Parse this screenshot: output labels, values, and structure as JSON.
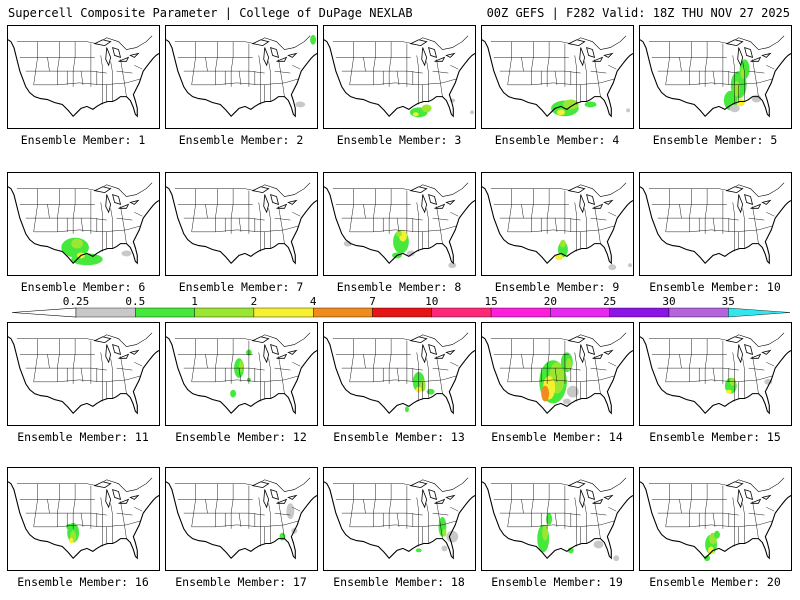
{
  "header": {
    "title": "Supercell Composite Parameter | College of DuPage NEXLAB",
    "valid": "00Z GEFS | F282 Valid: 18Z THU NOV 27 2025"
  },
  "colors": {
    "0.25": "#c8c8c8",
    "0.5": "#46e83c",
    "1": "#9be632",
    "2": "#f5f032",
    "4": "#f08c1e",
    "7": "#e61414",
    "10": "#ff2878",
    "15": "#ff1edc",
    "20": "#e628f0",
    "25": "#8c14e6",
    "30": "#b464dc",
    "35": "#32e6f0"
  },
  "colorbar": {
    "ticks": [
      "0.25",
      "0.5",
      "1",
      "2",
      "4",
      "7",
      "10",
      "15",
      "20",
      "25",
      "30",
      "35"
    ]
  },
  "members": [
    {
      "label": "Ensemble Member: 1"
    },
    {
      "label": "Ensemble Member: 2"
    },
    {
      "label": "Ensemble Member: 3"
    },
    {
      "label": "Ensemble Member: 4"
    },
    {
      "label": "Ensemble Member: 5"
    },
    {
      "label": "Ensemble Member: 6"
    },
    {
      "label": "Ensemble Member: 7"
    },
    {
      "label": "Ensemble Member: 8"
    },
    {
      "label": "Ensemble Member: 9"
    },
    {
      "label": "Ensemble Member: 10"
    },
    {
      "label": "Ensemble Member: 11"
    },
    {
      "label": "Ensemble Member: 12"
    },
    {
      "label": "Ensemble Member: 13"
    },
    {
      "label": "Ensemble Member: 14"
    },
    {
      "label": "Ensemble Member: 15"
    },
    {
      "label": "Ensemble Member: 16"
    },
    {
      "label": "Ensemble Member: 17"
    },
    {
      "label": "Ensemble Member: 18"
    },
    {
      "label": "Ensemble Member: 19"
    },
    {
      "label": "Ensemble Member: 20"
    }
  ]
}
